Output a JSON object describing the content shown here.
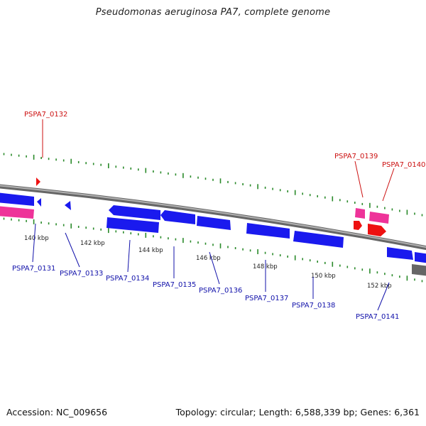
{
  "title": "Pseudomonas aeruginosa PA7, complete genome",
  "footer": {
    "accession": "Accession: NC_009656",
    "stats": "Topology: circular; Length: 6,588,339 bp; Genes: 6,361"
  },
  "colors": {
    "backbone": "#8a8a8a",
    "minor_tick": "#2a8a2a",
    "cds": "#1a1aee",
    "rna_pink": "#ee3399",
    "rna_red": "#ee1111",
    "label_blue": "#1111aa",
    "label_red": "#cc1111"
  },
  "scale_labels": [
    "140 kbp",
    "142 kbp",
    "144 kbp",
    "146 kbp",
    "148 kbp",
    "150 kbp",
    "152 kbp"
  ],
  "gene_labels": {
    "top": [
      "PSPA7_0132",
      "PSPA7_0139",
      "PSPA7_0140"
    ],
    "bottom": [
      "PSPA7_0131",
      "PSPA7_0133",
      "PSPA7_0134",
      "PSPA7_0135",
      "PSPA7_0136",
      "PSPA7_0137",
      "PSPA7_0138",
      "PSPA7_0141"
    ]
  }
}
